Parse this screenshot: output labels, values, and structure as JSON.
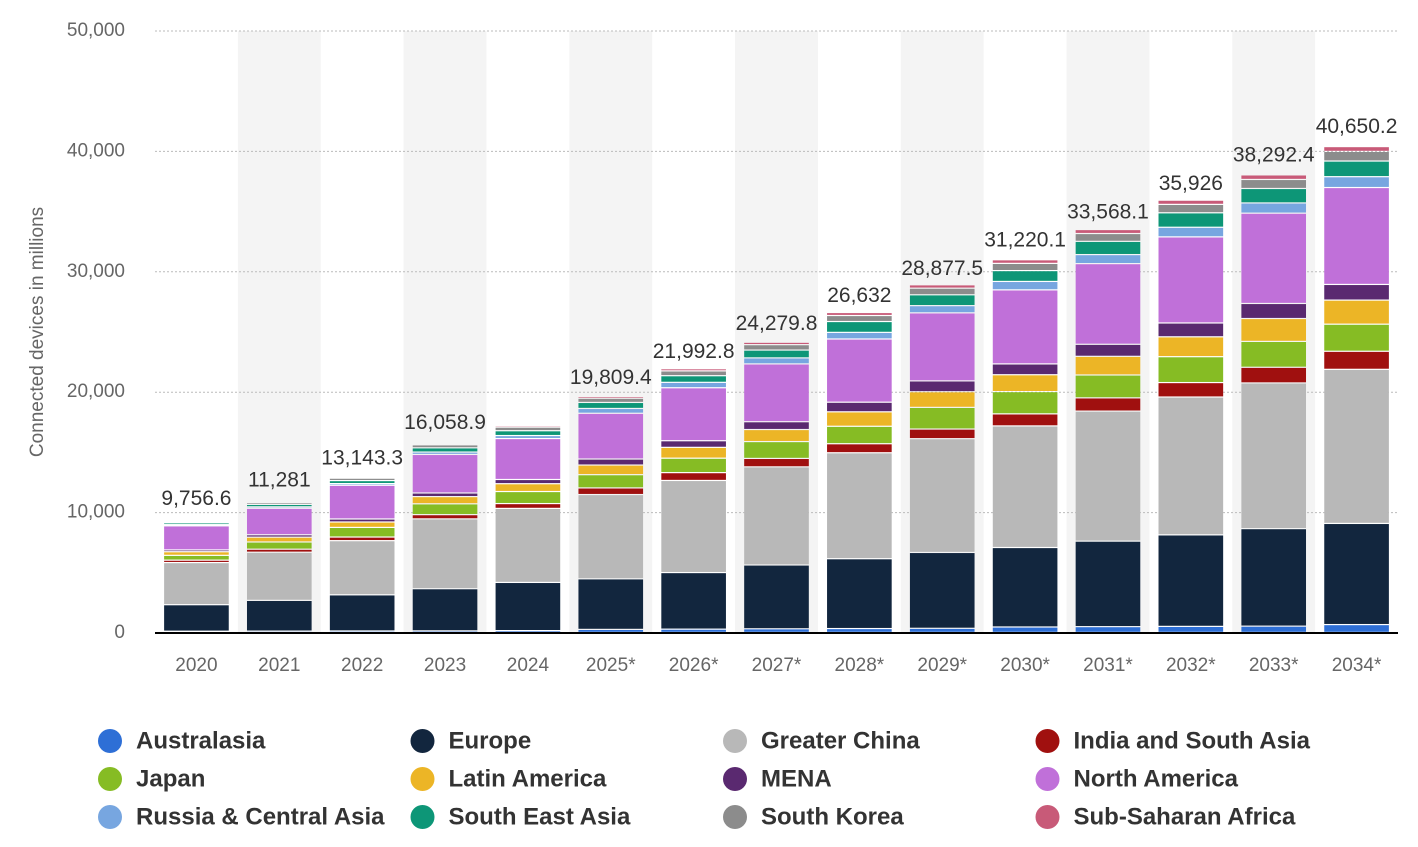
{
  "chart_data": {
    "type": "stacked_bar",
    "y_label": "Connected devices in millions",
    "categories": [
      "2020",
      "2021",
      "2022",
      "2023",
      "2024",
      "2025*",
      "2026*",
      "2027*",
      "2028*",
      "2029*",
      "2030*",
      "2031*",
      "2032*",
      "2033*",
      "2034*"
    ],
    "ylim": [
      0,
      50000
    ],
    "yticks": [
      0,
      {
        "value": 10000,
        "label": "10,000"
      },
      {
        "value": 20000,
        "label": "20,000"
      },
      {
        "value": 30000,
        "label": "30,000"
      },
      {
        "value": 40000,
        "label": "40,000"
      },
      {
        "value": 50000,
        "label": "50,000"
      }
    ],
    "grid": true,
    "totals": {
      "values": [
        9756.6,
        11281,
        13143.3,
        16058.9,
        null,
        19809.4,
        21992.8,
        24279.8,
        26632,
        28877.5,
        31220.1,
        33568.1,
        35926,
        38292.4,
        40650.2
      ],
      "value_labels": [
        "9,756.6",
        "11,281",
        "13,143.3",
        "16,058.9",
        null,
        "19,809.4",
        "21,992.8",
        "24,279.8",
        "26,632",
        "28,877.5",
        "31,220.1",
        "33,568.1",
        "35,926",
        "38,292.4",
        "40,650.2"
      ]
    },
    "series": [
      {
        "name": "Australasia",
        "color": "#2e6fd6",
        "values": [
          100,
          110,
          120,
          130,
          150,
          250,
          270,
          300,
          320,
          340,
          450,
          480,
          500,
          520,
          650
        ]
      },
      {
        "name": "Europe",
        "color": "#12263e",
        "values": [
          2200,
          2550,
          3000,
          3500,
          4000,
          4200,
          4700,
          5300,
          5800,
          6300,
          6600,
          7100,
          7600,
          8100,
          8400
        ]
      },
      {
        "name": "Greater China",
        "color": "#b8b8b8",
        "values": [
          3500,
          4000,
          4500,
          5800,
          6150,
          7000,
          7650,
          8150,
          8800,
          9450,
          10100,
          10800,
          11450,
          12100,
          12800
        ]
      },
      {
        "name": "India and South Asia",
        "color": "#a0100f",
        "values": [
          200,
          250,
          300,
          350,
          400,
          550,
          650,
          700,
          750,
          800,
          1000,
          1100,
          1200,
          1300,
          1500
        ]
      },
      {
        "name": "Japan",
        "color": "#86bc24",
        "values": [
          400,
          600,
          800,
          900,
          1000,
          1100,
          1200,
          1400,
          1450,
          1800,
          1850,
          1900,
          2150,
          2150,
          2250
        ]
      },
      {
        "name": "Latin America",
        "color": "#ecb526",
        "values": [
          300,
          400,
          450,
          600,
          650,
          800,
          900,
          1000,
          1200,
          1300,
          1400,
          1550,
          1650,
          1900,
          2000
        ]
      },
      {
        "name": "MENA",
        "color": "#5a2970",
        "values": [
          150,
          200,
          250,
          300,
          350,
          500,
          550,
          650,
          800,
          900,
          900,
          1000,
          1150,
          1250,
          1300
        ]
      },
      {
        "name": "North America",
        "color": "#c070d9",
        "values": [
          2000,
          2200,
          2800,
          3200,
          3400,
          3800,
          4400,
          4800,
          5250,
          5650,
          6150,
          6700,
          7150,
          7500,
          8050
        ]
      },
      {
        "name": "Russia & Central Asia",
        "color": "#77a6e0",
        "values": [
          100,
          120,
          140,
          200,
          250,
          400,
          450,
          500,
          550,
          600,
          700,
          750,
          800,
          850,
          900
        ]
      },
      {
        "name": "South East Asia",
        "color": "#0d9677",
        "values": [
          150,
          200,
          250,
          350,
          400,
          500,
          550,
          650,
          900,
          900,
          900,
          1100,
          1200,
          1200,
          1300
        ]
      },
      {
        "name": "South Korea",
        "color": "#8c8c8c",
        "values": [
          100,
          150,
          200,
          250,
          300,
          350,
          400,
          450,
          500,
          550,
          600,
          650,
          700,
          750,
          800
        ]
      },
      {
        "name": "Sub-Saharan Africa",
        "color": "#c85a78",
        "values": [
          50,
          60,
          80,
          100,
          120,
          150,
          180,
          200,
          250,
          280,
          300,
          330,
          350,
          380,
          400
        ]
      }
    ]
  }
}
